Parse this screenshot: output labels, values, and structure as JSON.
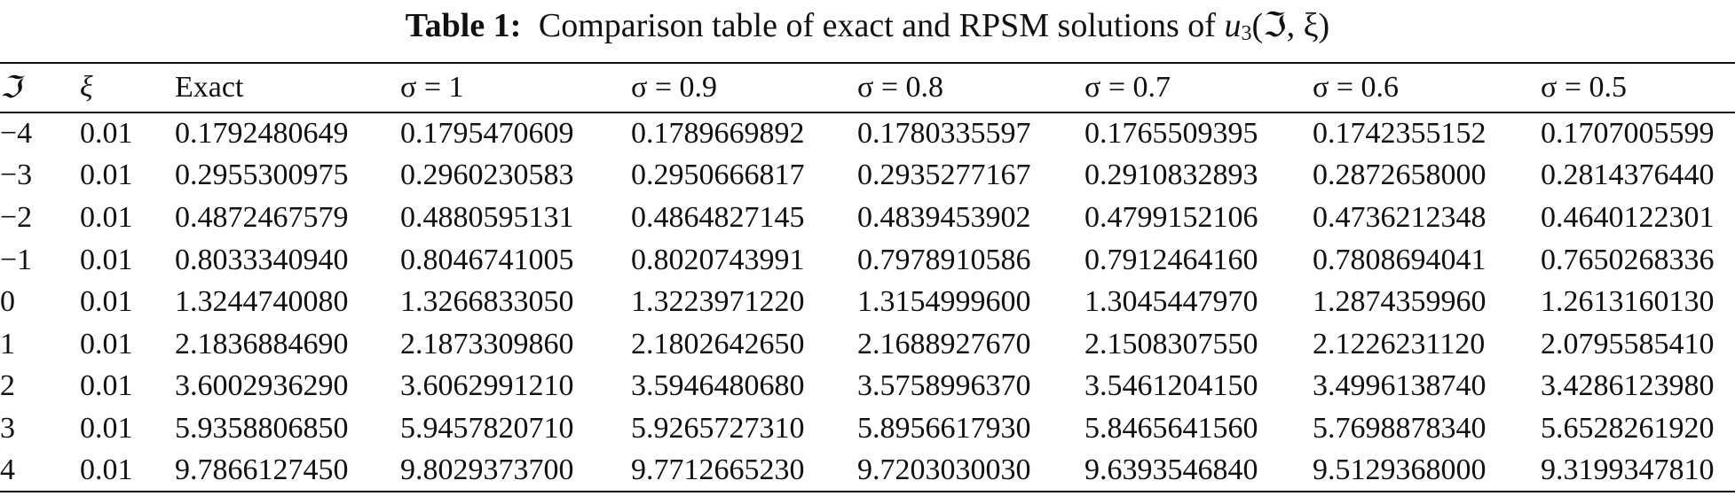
{
  "caption": {
    "label": "Table 1:",
    "text": "Comparison table of exact and RPSM solutions of",
    "func": "u",
    "sub": "3",
    "args": "(ℑ, ξ)"
  },
  "table": {
    "header": [
      "ℑ",
      "ξ",
      "Exact",
      "σ = 1",
      "σ = 0.9",
      "σ = 0.8",
      "σ = 0.7",
      "σ = 0.6",
      "σ = 0.5"
    ],
    "rows": [
      [
        "−4",
        "0.01",
        "0.1792480649",
        "0.1795470609",
        "0.1789669892",
        "0.1780335597",
        "0.1765509395",
        "0.1742355152",
        "0.1707005599"
      ],
      [
        "−3",
        "0.01",
        "0.2955300975",
        "0.2960230583",
        "0.2950666817",
        "0.2935277167",
        "0.2910832893",
        "0.2872658000",
        "0.2814376440"
      ],
      [
        "−2",
        "0.01",
        "0.4872467579",
        "0.4880595131",
        "0.4864827145",
        "0.4839453902",
        "0.4799152106",
        "0.4736212348",
        "0.4640122301"
      ],
      [
        "−1",
        "0.01",
        "0.8033340940",
        "0.8046741005",
        "0.8020743991",
        "0.7978910586",
        "0.7912464160",
        "0.7808694041",
        "0.7650268336"
      ],
      [
        "0",
        "0.01",
        "1.3244740080",
        "1.3266833050",
        "1.3223971220",
        "1.3154999600",
        "1.3045447970",
        "1.2874359960",
        "1.2613160130"
      ],
      [
        "1",
        "0.01",
        "2.1836884690",
        "2.1873309860",
        "2.1802642650",
        "2.1688927670",
        "2.1508307550",
        "2.1226231120",
        "2.0795585410"
      ],
      [
        "2",
        "0.01",
        "3.6002936290",
        "3.6062991210",
        "3.5946480680",
        "3.5758996370",
        "3.5461204150",
        "3.4996138740",
        "3.4286123980"
      ],
      [
        "3",
        "0.01",
        "5.9358806850",
        "5.9457820710",
        "5.9265727310",
        "5.8956617930",
        "5.8465641560",
        "5.7698878340",
        "5.6528261920"
      ],
      [
        "4",
        "0.01",
        "9.7866127450",
        "9.8029373700",
        "9.7712665230",
        "9.7203030030",
        "9.6393546840",
        "9.5129368000",
        "9.3199347810"
      ]
    ]
  }
}
